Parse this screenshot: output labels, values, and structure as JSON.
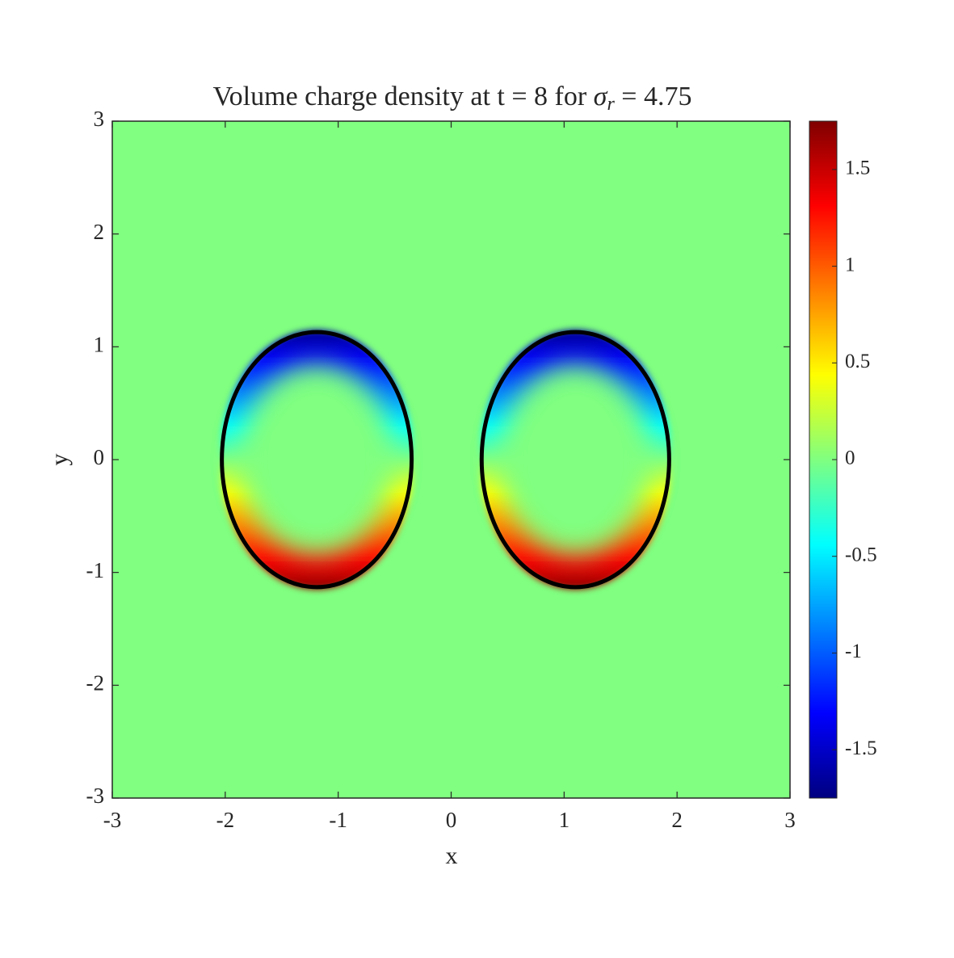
{
  "chart_data": {
    "type": "field",
    "title": {
      "text": "Volume charge density at t = 8 for ",
      "symbol": "σ",
      "subscript": "r",
      "rest": " = 4.75"
    },
    "xlabel": "x",
    "ylabel": "y",
    "xlim": [
      -3,
      3
    ],
    "ylim": [
      -3,
      3
    ],
    "xticks": [
      -3,
      -2,
      -1,
      0,
      1,
      2,
      3
    ],
    "yticks": [
      -3,
      -2,
      -1,
      0,
      1,
      2,
      3
    ],
    "background_value": 0,
    "colormap": "jet",
    "clim": [
      -1.75,
      1.75
    ],
    "colorbar_ticks": [
      -1.5,
      -1,
      -0.5,
      0,
      0.5,
      1,
      1.5
    ],
    "outline_color": "#000000",
    "ellipses": [
      {
        "cx": -1.19,
        "cy": 0,
        "rx": 0.84,
        "ry": 1.13,
        "top_value": -1.7,
        "bottom_value": 1.7
      },
      {
        "cx": 1.1,
        "cy": 0,
        "rx": 0.83,
        "ry": 1.13,
        "top_value": -1.7,
        "bottom_value": 1.7
      }
    ]
  }
}
